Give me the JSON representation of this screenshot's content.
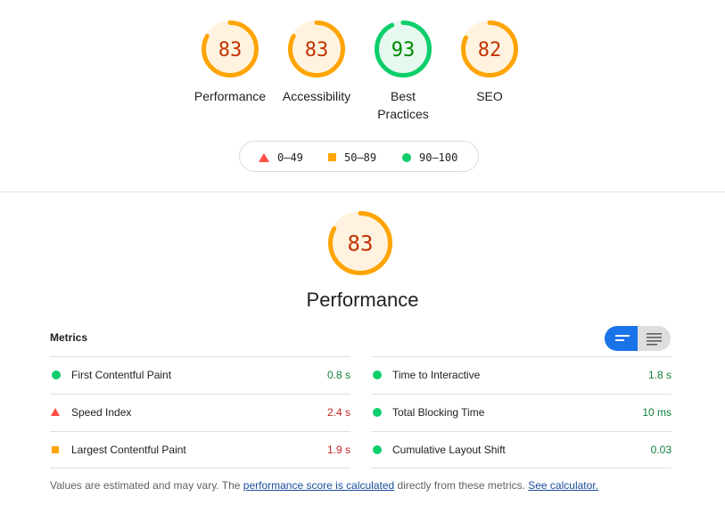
{
  "summary": {
    "gauges": [
      {
        "label": "Performance",
        "score": 83,
        "color": "#ffa400",
        "bg": "#fff3e0",
        "text_color": "#c33300"
      },
      {
        "label": "Accessibility",
        "score": 83,
        "color": "#ffa400",
        "bg": "#fff3e0",
        "text_color": "#c33300"
      },
      {
        "label": "Best Practices",
        "score": 93,
        "color": "#0cce6b",
        "bg": "#e6f9ef",
        "text_color": "#008800"
      },
      {
        "label": "SEO",
        "score": 82,
        "color": "#ffa400",
        "bg": "#fff3e0",
        "text_color": "#c33300"
      }
    ]
  },
  "legend": {
    "fail": "0–49",
    "average": "50–89",
    "pass": "90–100"
  },
  "performance": {
    "score": 83,
    "title": "Performance"
  },
  "metrics": {
    "title": "Metrics",
    "left": [
      {
        "name": "First Contentful Paint",
        "value": "0.8 s",
        "status": "pass"
      },
      {
        "name": "Speed Index",
        "value": "2.4 s",
        "status": "fail"
      },
      {
        "name": "Largest Contentful Paint",
        "value": "1.9 s",
        "status": "average"
      }
    ],
    "right": [
      {
        "name": "Time to Interactive",
        "value": "1.8 s",
        "status": "pass"
      },
      {
        "name": "Total Blocking Time",
        "value": "10 ms",
        "status": "pass"
      },
      {
        "name": "Cumulative Layout Shift",
        "value": "0.03",
        "status": "pass"
      }
    ]
  },
  "footnote": {
    "prefix": "Values are estimated and may vary. The ",
    "link1": "performance score is calculated",
    "middle": " directly from these metrics. ",
    "link2": "See calculator."
  },
  "colors": {
    "pass": "#0cce6b",
    "average": "#ffa400",
    "fail": "#ff4e42",
    "toggle_active": "#1a73e8"
  }
}
